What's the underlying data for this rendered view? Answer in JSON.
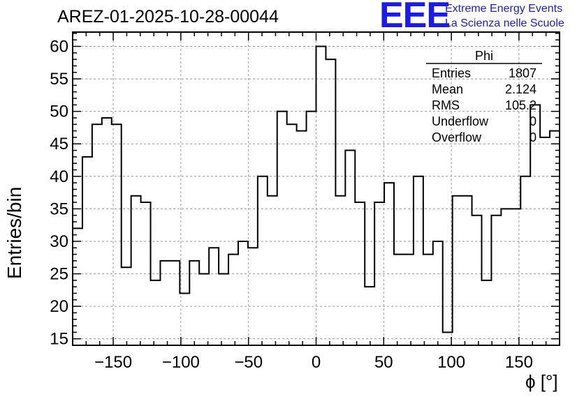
{
  "header": {
    "title": "AREZ-01-2025-10-28-00044",
    "logo_text": "EEE",
    "logo_line1": "Extreme Energy Events",
    "logo_line2": "La Scienza nelle Scuole"
  },
  "colors": {
    "logo": "#1a1aee",
    "grid": "#9a9a9a",
    "line": "#000000"
  },
  "chart_data": {
    "type": "histogram",
    "title": "AREZ-01-2025-10-28-00044",
    "xlabel": "ϕ [°]",
    "ylabel": "Entries/bin",
    "xlim": [
      -180,
      180
    ],
    "ylim": [
      14,
      62.2
    ],
    "bin_width": 7.2,
    "values": [
      32,
      43,
      48,
      49,
      48,
      26,
      37,
      36,
      24,
      27,
      27,
      22,
      27,
      25,
      29,
      25,
      28,
      30,
      29,
      40,
      37,
      50,
      48,
      47,
      50,
      60,
      58,
      37,
      44,
      36,
      23,
      36,
      39,
      28,
      28,
      40,
      28,
      30,
      16,
      37,
      37,
      34,
      24,
      34,
      35,
      35,
      40,
      51,
      46,
      47
    ],
    "xticks": [
      -150,
      -100,
      -50,
      0,
      50,
      100,
      150
    ],
    "xtick_labels": [
      "−150",
      "−100",
      "−50",
      "0",
      "50",
      "100",
      "150"
    ],
    "yticks": [
      15,
      20,
      25,
      30,
      35,
      40,
      45,
      50,
      55,
      60
    ],
    "ytick_labels": [
      "15",
      "20",
      "25",
      "30",
      "35",
      "40",
      "45",
      "50",
      "55",
      "60"
    ],
    "grid": true,
    "stats_box": {
      "title": "Phi",
      "rows": [
        {
          "label": "Entries",
          "value": "1807"
        },
        {
          "label": "Mean",
          "value": "2.124"
        },
        {
          "label": "RMS",
          "value": "105.2"
        },
        {
          "label": "Underflow",
          "value": "0"
        },
        {
          "label": "Overflow",
          "value": "0"
        }
      ]
    }
  }
}
